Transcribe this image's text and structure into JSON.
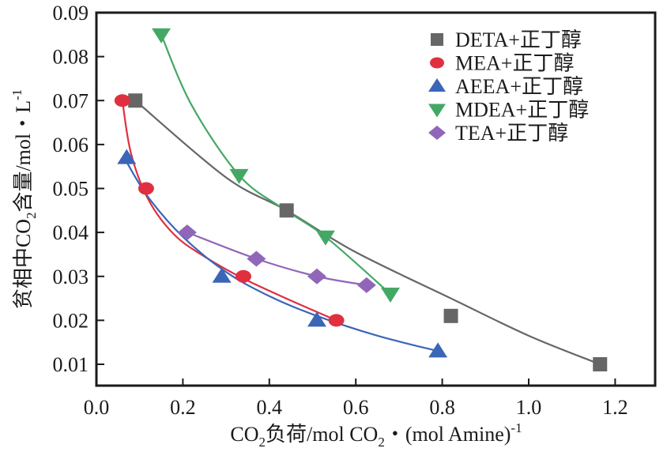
{
  "chart_data": {
    "type": "line",
    "title": "",
    "xlabel": "CO₂负荷/mol CO₂・(mol Amine)⁻¹",
    "xlabel_parts": {
      "a": "CO",
      "a_sub": "2",
      "b": "负荷/mol CO",
      "b_sub": "2",
      "c": "・(mol Amine)",
      "c_sup": "-1"
    },
    "ylabel": "贫相中CO₂含量/mol・L⁻¹",
    "ylabel_parts": {
      "a": "贫相中CO",
      "a_sub": "2",
      "b": "含量/mol・L",
      "b_sup": "-1"
    },
    "xlim": [
      0.0,
      1.3
    ],
    "ylim": [
      0.005,
      0.09
    ],
    "xticks": [
      "0.0",
      "0.2",
      "0.4",
      "0.6",
      "0.8",
      "1.0",
      "1.2"
    ],
    "xtick_values": [
      0.0,
      0.2,
      0.4,
      0.6,
      0.8,
      1.0,
      1.2
    ],
    "yticks": [
      "0.01",
      "0.02",
      "0.03",
      "0.04",
      "0.05",
      "0.06",
      "0.07",
      "0.08",
      "0.09"
    ],
    "ytick_values": [
      0.01,
      0.02,
      0.03,
      0.04,
      0.05,
      0.06,
      0.07,
      0.08,
      0.09
    ],
    "grid": false,
    "legend_position": "top-right",
    "series": [
      {
        "name": "DETA+正丁醇",
        "color": "#666666",
        "marker": "square",
        "x": [
          0.09,
          0.44,
          0.82,
          1.165
        ],
        "y": [
          0.07,
          0.045,
          0.021,
          0.01
        ]
      },
      {
        "name": "MEA+正丁醇",
        "color": "#e0303f",
        "marker": "circle",
        "x": [
          0.06,
          0.115,
          0.34,
          0.555
        ],
        "y": [
          0.07,
          0.05,
          0.03,
          0.02
        ]
      },
      {
        "name": "AEEA+正丁醇",
        "color": "#3a66b8",
        "marker": "triangle-up",
        "x": [
          0.07,
          0.29,
          0.51,
          0.79
        ],
        "y": [
          0.057,
          0.03,
          0.02,
          0.013
        ]
      },
      {
        "name": "MDEA+正丁醇",
        "color": "#44a865",
        "marker": "triangle-down",
        "x": [
          0.15,
          0.33,
          0.53,
          0.68
        ],
        "y": [
          0.085,
          0.053,
          0.039,
          0.026
        ]
      },
      {
        "name": "TEA+正丁醇",
        "color": "#9066b8",
        "marker": "diamond",
        "x": [
          0.21,
          0.37,
          0.51,
          0.625
        ],
        "y": [
          0.04,
          0.034,
          0.03,
          0.028
        ]
      }
    ],
    "fit_curves": [
      {
        "series": "DETA+正丁醇",
        "x": [
          0.09,
          0.3,
          0.44,
          0.6,
          0.82,
          1.0,
          1.165
        ],
        "y": [
          0.07,
          0.0525,
          0.045,
          0.0355,
          0.025,
          0.0165,
          0.01
        ]
      },
      {
        "series": "MEA+正丁醇",
        "x": [
          0.06,
          0.08,
          0.12,
          0.18,
          0.25,
          0.34,
          0.45,
          0.555
        ],
        "y": [
          0.07,
          0.058,
          0.0475,
          0.0395,
          0.0345,
          0.0295,
          0.0245,
          0.02
        ]
      },
      {
        "series": "AEEA+正丁醇",
        "x": [
          0.07,
          0.12,
          0.2,
          0.3,
          0.4,
          0.51,
          0.65,
          0.79
        ],
        "y": [
          0.056,
          0.048,
          0.039,
          0.031,
          0.0255,
          0.021,
          0.0165,
          0.013
        ]
      },
      {
        "series": "MDEA+正丁醇",
        "x": [
          0.15,
          0.22,
          0.33,
          0.43,
          0.53,
          0.68
        ],
        "y": [
          0.085,
          0.069,
          0.053,
          0.0455,
          0.039,
          0.026
        ]
      },
      {
        "series": "TEA+正丁醇",
        "x": [
          0.21,
          0.37,
          0.51,
          0.625
        ],
        "y": [
          0.04,
          0.034,
          0.03,
          0.028
        ]
      }
    ]
  }
}
